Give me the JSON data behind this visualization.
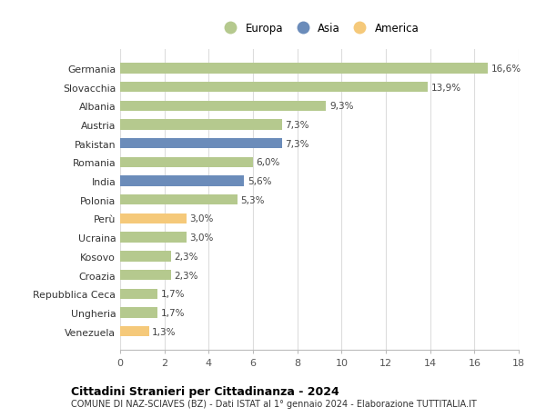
{
  "categories": [
    "Germania",
    "Slovacchia",
    "Albania",
    "Austria",
    "Pakistan",
    "Romania",
    "India",
    "Polonia",
    "Perù",
    "Ucraina",
    "Kosovo",
    "Croazia",
    "Repubblica Ceca",
    "Ungheria",
    "Venezuela"
  ],
  "values": [
    16.6,
    13.9,
    9.3,
    7.3,
    7.3,
    6.0,
    5.6,
    5.3,
    3.0,
    3.0,
    2.3,
    2.3,
    1.7,
    1.7,
    1.3
  ],
  "labels": [
    "16,6%",
    "13,9%",
    "9,3%",
    "7,3%",
    "7,3%",
    "6,0%",
    "5,6%",
    "5,3%",
    "3,0%",
    "3,0%",
    "2,3%",
    "2,3%",
    "1,7%",
    "1,7%",
    "1,3%"
  ],
  "continents": [
    "Europa",
    "Europa",
    "Europa",
    "Europa",
    "Asia",
    "Europa",
    "Asia",
    "Europa",
    "America",
    "Europa",
    "Europa",
    "Europa",
    "Europa",
    "Europa",
    "America"
  ],
  "colors": {
    "Europa": "#b5c98e",
    "Asia": "#6b8cba",
    "America": "#f5c97a"
  },
  "legend_entries": [
    "Europa",
    "Asia",
    "America"
  ],
  "xlim": [
    0,
    18
  ],
  "xticks": [
    0,
    2,
    4,
    6,
    8,
    10,
    12,
    14,
    16,
    18
  ],
  "title": "Cittadini Stranieri per Cittadinanza - 2024",
  "subtitle": "COMUNE DI NAZ-SCIAVES (BZ) - Dati ISTAT al 1° gennaio 2024 - Elaborazione TUTTITALIA.IT",
  "background_color": "#ffffff",
  "grid_color": "#dddddd"
}
